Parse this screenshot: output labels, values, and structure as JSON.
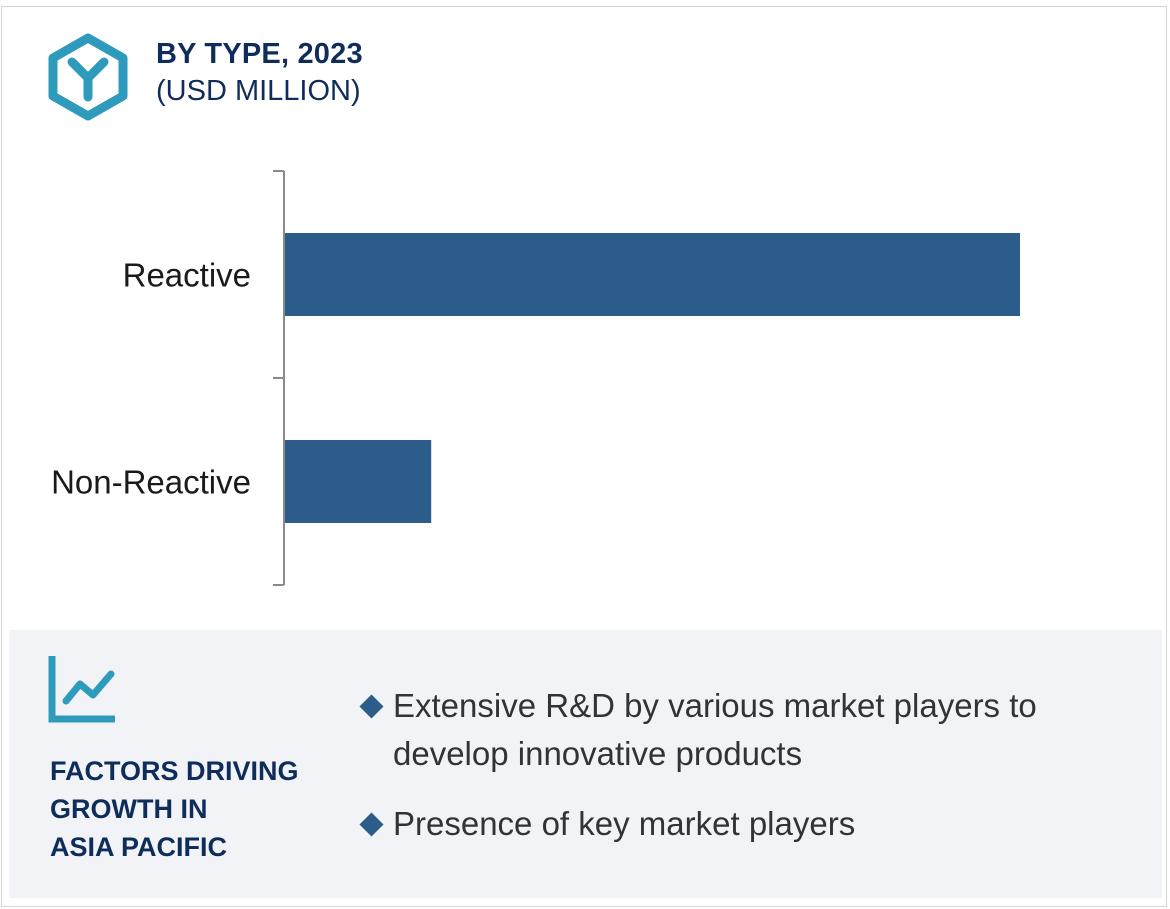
{
  "header": {
    "title": "BY TYPE, 2023",
    "subtitle": "(USD MILLION)",
    "icon": "hexagon-y-logo-icon"
  },
  "colors": {
    "bar": "#2b5c8a",
    "accent": "#2e9bbd",
    "title": "#0f2d5a",
    "axis": "#8a8a8a",
    "panel_bg": "#f1f3f6"
  },
  "chart_data": {
    "type": "bar",
    "orientation": "horizontal",
    "categories": [
      "Reactive",
      "Non-Reactive"
    ],
    "values": [
      100,
      20
    ],
    "value_scale": "relative",
    "title": "BY TYPE, 2023",
    "subtitle": "(USD MILLION)",
    "xlabel": "",
    "ylabel": "",
    "xlim": [
      0,
      100
    ],
    "grid": false,
    "legend": "none"
  },
  "factors": {
    "icon": "line-chart-icon",
    "title_lines": [
      "FACTORS DRIVING",
      "GROWTH IN",
      "ASIA PACIFIC"
    ],
    "bullets": [
      "Extensive R&D by various market players to develop innovative products",
      "Presence of key market players"
    ]
  }
}
